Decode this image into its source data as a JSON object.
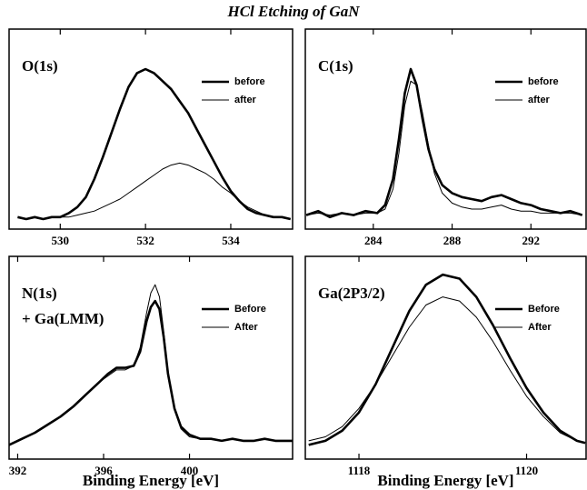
{
  "title": "HCl Etching of GaN",
  "chart_data": [
    {
      "type": "line",
      "label": [
        "O(1s)"
      ],
      "xlim": [
        528.8,
        535.45
      ],
      "xticks": [
        530,
        532,
        534
      ],
      "ylim": [
        0,
        100
      ],
      "x": [
        529.0,
        529.2,
        529.4,
        529.6,
        529.8,
        530.0,
        530.2,
        530.4,
        530.6,
        530.8,
        531.0,
        531.2,
        531.4,
        531.6,
        531.8,
        532.0,
        532.2,
        532.4,
        532.6,
        532.8,
        533.0,
        533.2,
        533.4,
        533.6,
        533.8,
        534.0,
        534.2,
        534.4,
        534.6,
        534.8,
        535.0,
        535.2,
        535.4
      ],
      "series": [
        {
          "name": "before",
          "color": "#000",
          "width": 2.6,
          "values": [
            6,
            5,
            6,
            5,
            6,
            6,
            8,
            11,
            16,
            25,
            36,
            48,
            60,
            71,
            78,
            80,
            78,
            74,
            70,
            64,
            58,
            50,
            42,
            34,
            26,
            19,
            14,
            10,
            8,
            7,
            6,
            6,
            5
          ]
        },
        {
          "name": "after",
          "color": "#000",
          "width": 1,
          "values": [
            6,
            5,
            6,
            5,
            6,
            6,
            6,
            7,
            8,
            9,
            11,
            13,
            15,
            18,
            21,
            24,
            27,
            30,
            32,
            33,
            32,
            30,
            28,
            25,
            21,
            18,
            14,
            11,
            9,
            7,
            6,
            6,
            5
          ]
        }
      ]
    },
    {
      "type": "line",
      "label": [
        "C(1s)"
      ],
      "xlim": [
        280.55,
        294.8
      ],
      "xticks": [
        284,
        288,
        292
      ],
      "ylim": [
        0,
        100
      ],
      "x": [
        280.6,
        281.2,
        281.8,
        282.4,
        283.0,
        283.6,
        284.2,
        284.6,
        285.0,
        285.3,
        285.6,
        285.9,
        286.2,
        286.5,
        286.8,
        287.1,
        287.5,
        288.0,
        288.5,
        289.0,
        289.5,
        290.0,
        290.5,
        291.0,
        291.5,
        292.0,
        292.5,
        293.0,
        293.5,
        294.0,
        294.6
      ],
      "series": [
        {
          "name": "before",
          "color": "#000",
          "width": 2.6,
          "values": [
            7,
            9,
            6,
            8,
            7,
            9,
            8,
            12,
            25,
            45,
            68,
            80,
            72,
            55,
            40,
            30,
            22,
            18,
            16,
            15,
            14,
            16,
            17,
            15,
            13,
            12,
            10,
            9,
            8,
            9,
            7
          ]
        },
        {
          "name": "after",
          "color": "#000",
          "width": 1,
          "values": [
            7,
            8,
            7,
            8,
            7,
            8,
            8,
            10,
            20,
            38,
            62,
            74,
            72,
            58,
            42,
            28,
            18,
            13,
            11,
            10,
            10,
            11,
            12,
            10,
            9,
            9,
            8,
            8,
            8,
            8,
            7
          ]
        }
      ]
    },
    {
      "type": "line",
      "label": [
        "N(1s)",
        "+ Ga(LMM)"
      ],
      "xlabel": "Binding Energy  [eV]",
      "xlim": [
        391.6,
        404.8
      ],
      "xticks": [
        392,
        396,
        400
      ],
      "ylim": [
        0,
        100
      ],
      "x": [
        391.6,
        392.2,
        392.8,
        393.4,
        394.0,
        394.6,
        395.2,
        395.8,
        396.2,
        396.6,
        397.0,
        397.4,
        397.7,
        398.0,
        398.2,
        398.4,
        398.6,
        398.8,
        399.0,
        399.3,
        399.6,
        400.0,
        400.5,
        401.0,
        401.5,
        402.0,
        402.5,
        403.0,
        403.5,
        404.0,
        404.8
      ],
      "series": [
        {
          "name": "Before",
          "color": "#000",
          "width": 2.6,
          "values": [
            7,
            10,
            13,
            17,
            21,
            26,
            32,
            38,
            42,
            45,
            45,
            46,
            53,
            68,
            75,
            78,
            74,
            60,
            42,
            25,
            16,
            12,
            10,
            10,
            9,
            10,
            9,
            9,
            10,
            9,
            9
          ]
        },
        {
          "name": "After",
          "color": "#000",
          "width": 1,
          "values": [
            7,
            10,
            13,
            17,
            21,
            26,
            32,
            38,
            41,
            44,
            44,
            46,
            55,
            72,
            82,
            86,
            80,
            63,
            43,
            25,
            15,
            11,
            10,
            10,
            9,
            10,
            9,
            9,
            10,
            9,
            9
          ]
        }
      ]
    },
    {
      "type": "line",
      "label": [
        "Ga(2P3/2)"
      ],
      "xlabel": "Binding Energy  [eV]",
      "xlim": [
        1117.36,
        1120.71
      ],
      "xticks": [
        1118,
        1120
      ],
      "ylim": [
        0,
        100
      ],
      "x": [
        1117.4,
        1117.6,
        1117.8,
        1118.0,
        1118.2,
        1118.4,
        1118.6,
        1118.8,
        1119.0,
        1119.2,
        1119.4,
        1119.6,
        1119.8,
        1120.0,
        1120.2,
        1120.4,
        1120.6,
        1120.7
      ],
      "series": [
        {
          "name": "Before",
          "color": "#000",
          "width": 2.6,
          "values": [
            7,
            9,
            14,
            23,
            37,
            55,
            73,
            86,
            91,
            89,
            80,
            66,
            50,
            35,
            23,
            14,
            9,
            8
          ]
        },
        {
          "name": "After",
          "color": "#000",
          "width": 1,
          "values": [
            9,
            11,
            16,
            25,
            37,
            51,
            65,
            76,
            80,
            78,
            70,
            58,
            44,
            31,
            21,
            13,
            9,
            8
          ]
        }
      ]
    }
  ]
}
